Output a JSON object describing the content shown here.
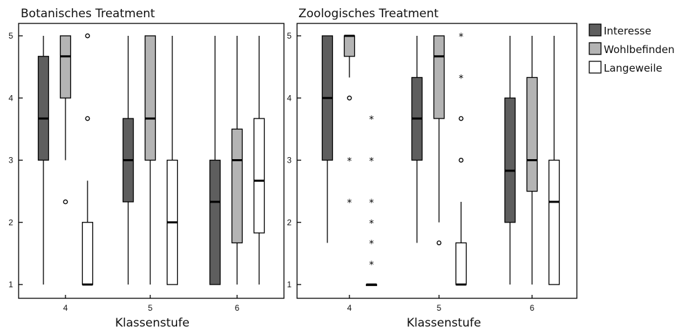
{
  "chart_data": {
    "type": "boxplot",
    "legend_position": "right",
    "legend": [
      {
        "name": "Interesse",
        "color": "#5e5e5e"
      },
      {
        "name": "Wohlbefinden",
        "color": "#b4b4b4"
      },
      {
        "name": "Langeweile",
        "color": "#ffffff"
      }
    ],
    "panels": [
      {
        "title": "Botanisches Treatment",
        "xlabel": "Klassenstufe",
        "ylim": [
          1,
          5
        ],
        "yticks": [
          "1",
          "2",
          "3",
          "4",
          "5"
        ],
        "categories": [
          "4",
          "5",
          "6"
        ],
        "groups": [
          {
            "category": "4",
            "boxes": [
              {
                "series": "Interesse",
                "min": 1,
                "q1": 3,
                "median": 3.67,
                "q3": 4.67,
                "max": 5,
                "outliers_circle": [],
                "outliers_star": []
              },
              {
                "series": "Wohlbefinden",
                "min": 3,
                "q1": 4,
                "median": 4.67,
                "q3": 5,
                "max": 5,
                "outliers_circle": [
                  2.33
                ],
                "outliers_star": []
              },
              {
                "series": "Langeweile",
                "min": 1,
                "q1": 1,
                "median": 1,
                "q3": 2,
                "max": 2.67,
                "outliers_circle": [
                  3.67,
                  5
                ],
                "outliers_star": []
              }
            ]
          },
          {
            "category": "5",
            "boxes": [
              {
                "series": "Interesse",
                "min": 1,
                "q1": 2.33,
                "median": 3,
                "q3": 3.67,
                "max": 5,
                "outliers_circle": [],
                "outliers_star": []
              },
              {
                "series": "Wohlbefinden",
                "min": 1,
                "q1": 3,
                "median": 3.67,
                "q3": 5,
                "max": 5,
                "outliers_circle": [],
                "outliers_star": []
              },
              {
                "series": "Langeweile",
                "min": 1,
                "q1": 1,
                "median": 2,
                "q3": 3,
                "max": 5,
                "outliers_circle": [],
                "outliers_star": []
              }
            ]
          },
          {
            "category": "6",
            "boxes": [
              {
                "series": "Interesse",
                "min": 1,
                "q1": 1,
                "median": 2.33,
                "q3": 3,
                "max": 5,
                "outliers_circle": [],
                "outliers_star": []
              },
              {
                "series": "Wohlbefinden",
                "min": 1,
                "q1": 1.67,
                "median": 3,
                "q3": 3.5,
                "max": 5,
                "outliers_circle": [],
                "outliers_star": []
              },
              {
                "series": "Langeweile",
                "min": 1,
                "q1": 1.83,
                "median": 2.67,
                "q3": 3.67,
                "max": 5,
                "outliers_circle": [],
                "outliers_star": []
              }
            ]
          }
        ]
      },
      {
        "title": "Zoologisches Treatment",
        "xlabel": "Klassenstufe",
        "ylim": [
          1,
          5
        ],
        "yticks": [
          "1",
          "2",
          "3",
          "4",
          "5"
        ],
        "categories": [
          "4",
          "5",
          "6"
        ],
        "groups": [
          {
            "category": "4",
            "boxes": [
              {
                "series": "Interesse",
                "min": 1.67,
                "q1": 3,
                "median": 4,
                "q3": 5,
                "max": 5,
                "outliers_circle": [],
                "outliers_star": []
              },
              {
                "series": "Wohlbefinden",
                "min": 4.33,
                "q1": 4.67,
                "median": 5,
                "q3": 5,
                "max": 5,
                "outliers_circle": [
                  4
                ],
                "outliers_star": [
                  3,
                  2.33
                ]
              },
              {
                "series": "Langeweile",
                "min": 1,
                "q1": 1,
                "median": 1,
                "q3": 1,
                "max": 1,
                "outliers_circle": [],
                "outliers_star": [
                  3.67,
                  3,
                  2.33,
                  2,
                  1.67,
                  1.33
                ]
              }
            ]
          },
          {
            "category": "5",
            "boxes": [
              {
                "series": "Interesse",
                "min": 1.67,
                "q1": 3,
                "median": 3.67,
                "q3": 4.33,
                "max": 5,
                "outliers_circle": [],
                "outliers_star": []
              },
              {
                "series": "Wohlbefinden",
                "min": 2,
                "q1": 3.67,
                "median": 4.67,
                "q3": 5,
                "max": 5,
                "outliers_circle": [
                  1.67
                ],
                "outliers_star": []
              },
              {
                "series": "Langeweile",
                "min": 1,
                "q1": 1,
                "median": 1,
                "q3": 1.67,
                "max": 2.33,
                "outliers_circle": [
                  3.67,
                  3
                ],
                "outliers_star": [
                  5,
                  4.33
                ]
              }
            ]
          },
          {
            "category": "6",
            "boxes": [
              {
                "series": "Interesse",
                "min": 1,
                "q1": 2,
                "median": 2.83,
                "q3": 4,
                "max": 5,
                "outliers_circle": [],
                "outliers_star": []
              },
              {
                "series": "Wohlbefinden",
                "min": 1,
                "q1": 2.5,
                "median": 3,
                "q3": 4.33,
                "max": 5,
                "outliers_circle": [],
                "outliers_star": []
              },
              {
                "series": "Langeweile",
                "min": 1,
                "q1": 1,
                "median": 2.33,
                "q3": 3,
                "max": 5,
                "outliers_circle": [],
                "outliers_star": []
              }
            ]
          }
        ]
      }
    ]
  }
}
